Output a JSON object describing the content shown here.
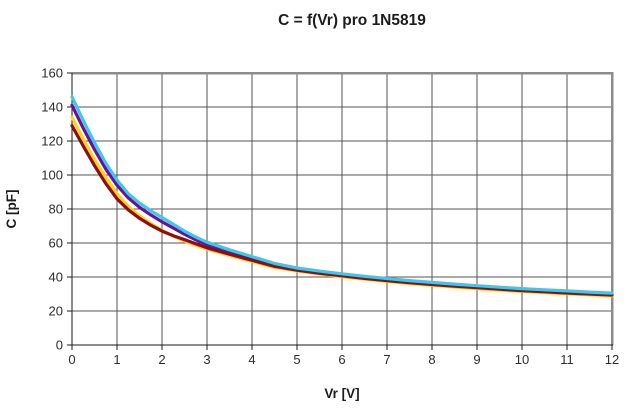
{
  "chart_data": {
    "type": "line",
    "title": "C = f(Vr) pro 1N5819",
    "xlabel": "Vr [V]",
    "ylabel": "C [pF]",
    "xlim": [
      0,
      12
    ],
    "ylim": [
      0,
      160
    ],
    "x_ticks": [
      0,
      1,
      2,
      3,
      4,
      5,
      6,
      7,
      8,
      9,
      10,
      11,
      12
    ],
    "y_ticks": [
      0,
      20,
      40,
      60,
      80,
      100,
      120,
      140,
      160
    ],
    "grid": true,
    "legend_position": "none",
    "plot_frame_color": "#8c8c8c",
    "gridline_color": "#555555",
    "axis_color": "#1a1a1a",
    "x": [
      0,
      0.25,
      0.5,
      0.75,
      1,
      1.25,
      1.5,
      1.75,
      2,
      2.25,
      2.5,
      2.75,
      3,
      3.5,
      4,
      4.5,
      5,
      5.5,
      6,
      6.5,
      7,
      7.5,
      8,
      8.5,
      9,
      9.5,
      10,
      10.5,
      11,
      11.5,
      12
    ],
    "series": [
      {
        "name": "series-purple",
        "color": "#6a1296",
        "values": [
          141,
          127.5,
          115,
          103.5,
          94,
          86.5,
          81,
          76.5,
          72.5,
          68.8,
          65.2,
          61.9,
          59,
          54.6,
          50.8,
          47,
          44.6,
          42.8,
          41.2,
          39.7,
          38.4,
          37.2,
          36.1,
          35.1,
          34.2,
          33.3,
          32.5,
          31.8,
          31.1,
          30.4,
          29.8
        ]
      },
      {
        "name": "series-yellow",
        "color": "#ffd21e",
        "values": [
          134,
          121,
          109,
          98.5,
          89,
          81.5,
          76,
          71.5,
          67.5,
          64,
          61.2,
          58.7,
          56.4,
          52.7,
          49.1,
          45.7,
          43.6,
          41.8,
          40.2,
          38.7,
          37.4,
          36.2,
          35.1,
          34.1,
          33.2,
          32.3,
          31.5,
          30.8,
          30.1,
          29.5,
          28.9
        ]
      },
      {
        "name": "series-maroon",
        "color": "#8b0f0f",
        "values": [
          129,
          117,
          105.5,
          95,
          86,
          79.5,
          74.5,
          70.5,
          67,
          64.3,
          62,
          59.5,
          57.2,
          53.4,
          49.8,
          46.3,
          44,
          42.2,
          40.7,
          39.2,
          37.9,
          36.7,
          35.6,
          34.6,
          33.7,
          32.8,
          32,
          31.3,
          30.6,
          30,
          29.4
        ]
      },
      {
        "name": "series-cyan",
        "color": "#3cc8ee",
        "values": [
          146,
          132,
          119,
          107,
          97,
          89,
          83.5,
          79,
          75,
          71,
          67,
          63.5,
          60.5,
          56,
          52,
          48,
          45.3,
          43.5,
          41.9,
          40.4,
          39.1,
          37.9,
          36.8,
          35.8,
          34.9,
          34,
          33.2,
          32.5,
          31.8,
          31.1,
          30.5
        ]
      }
    ]
  }
}
